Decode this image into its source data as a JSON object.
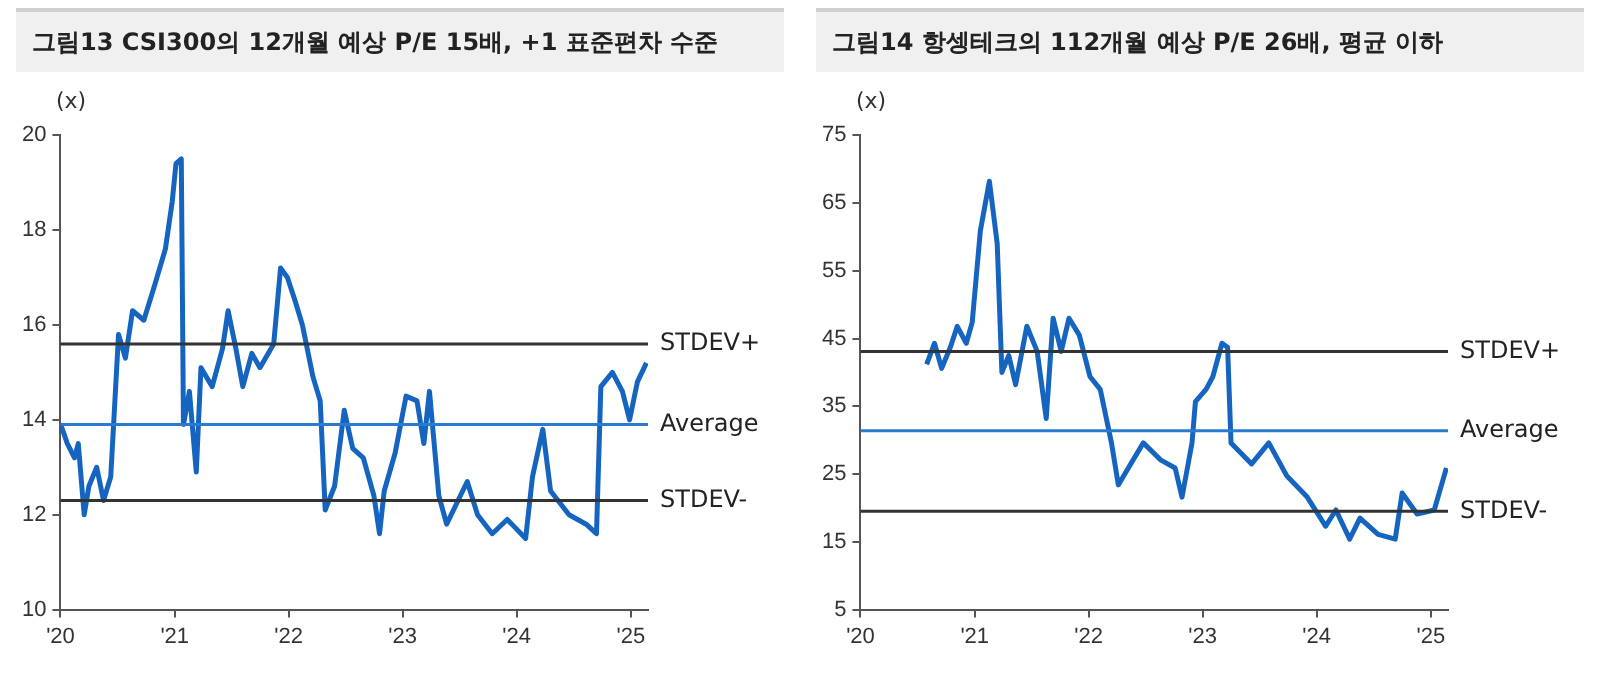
{
  "chart_data": [
    {
      "type": "line",
      "title": "그림13 CSI300의 12개월 예상 P/E 15배, +1 표준편차 수준",
      "ylabel": "(x)",
      "x": [
        "2020-01-02",
        "2020-01-23",
        "2020-02-15",
        "2020-02-27",
        "2020-03-17",
        "2020-04-01",
        "2020-04-26",
        "2020-05-18",
        "2020-06-10",
        "2020-07-05",
        "2020-07-27",
        "2020-08-19",
        "2020-09-24",
        "2020-10-27",
        "2020-12-02",
        "2020-12-24",
        "2021-01-05",
        "2021-01-22",
        "2021-01-29",
        "2021-02-17",
        "2021-03-11",
        "2021-03-26",
        "2021-05-01",
        "2021-06-03",
        "2021-06-21",
        "2021-07-16",
        "2021-08-07",
        "2021-09-05",
        "2021-10-01",
        "2021-11-14",
        "2021-12-06",
        "2021-12-28",
        "2022-01-22",
        "2022-02-14",
        "2022-03-20",
        "2022-04-12",
        "2022-04-28",
        "2022-05-28",
        "2022-06-28",
        "2022-07-25",
        "2022-08-28",
        "2022-10-01",
        "2022-10-19",
        "2022-11-03",
        "2022-12-08",
        "2023-01-12",
        "2023-02-16",
        "2023-03-10",
        "2023-03-28",
        "2023-04-27",
        "2023-05-22",
        "2023-07-27",
        "2023-08-29",
        "2023-10-15",
        "2023-12-02",
        "2024-01-30",
        "2024-02-21",
        "2024-03-25",
        "2024-04-19",
        "2024-06-17",
        "2024-08-11",
        "2024-09-13",
        "2024-09-27",
        "2024-11-03",
        "2024-12-05",
        "2024-12-28",
        "2025-01-22",
        "2025-02-20"
      ],
      "series": [
        {
          "color": "#1565c0",
          "values": [
            13.9,
            13.5,
            13.2,
            13.5,
            12.0,
            12.6,
            13.0,
            12.3,
            12.8,
            15.8,
            15.3,
            16.3,
            16.1,
            16.8,
            17.6,
            18.6,
            19.4,
            19.5,
            13.9,
            14.6,
            12.9,
            15.1,
            14.7,
            15.5,
            16.3,
            15.5,
            14.7,
            15.4,
            15.1,
            15.6,
            17.2,
            17.0,
            16.5,
            16.0,
            14.9,
            14.4,
            12.1,
            12.6,
            14.2,
            13.4,
            13.2,
            12.4,
            11.6,
            12.5,
            13.3,
            14.5,
            14.4,
            13.5,
            14.6,
            12.4,
            11.8,
            12.7,
            12.0,
            11.6,
            11.9,
            11.5,
            12.8,
            13.8,
            12.5,
            12.0,
            11.8,
            11.6,
            14.7,
            15.0,
            14.6,
            14.0,
            14.8,
            15.2
          ]
        }
      ],
      "xlim": [
        "2020-01-01",
        "2025-02-25"
      ],
      "xticks": [
        {
          "value": "2020-01-01",
          "label": "'20"
        },
        {
          "value": "2021-01-01",
          "label": "'21"
        },
        {
          "value": "2022-01-01",
          "label": "'22"
        },
        {
          "value": "2023-01-01",
          "label": "'23"
        },
        {
          "value": "2024-01-01",
          "label": "'24"
        },
        {
          "value": "2025-01-01",
          "label": "'25"
        }
      ],
      "ylim": [
        10,
        20
      ],
      "yticks": [
        10,
        12,
        14,
        16,
        18,
        20
      ],
      "ref_lines": [
        {
          "axis": "y",
          "value": 15.6,
          "label": "STDEV+",
          "color": "#333333"
        },
        {
          "axis": "y",
          "value": 13.9,
          "label": "Average",
          "color": "#2a7bd0"
        },
        {
          "axis": "y",
          "value": 12.3,
          "label": "STDEV-",
          "color": "#333333"
        }
      ],
      "grid": false,
      "legend": false
    },
    {
      "type": "line",
      "title": "그림14 항셍테크의 112개월 예상 P/E 26배, 평균 이하",
      "ylabel": "(x)",
      "x": [
        "2020-07-31",
        "2020-08-25",
        "2020-09-17",
        "2020-10-15",
        "2020-11-06",
        "2020-12-05",
        "2020-12-24",
        "2021-01-19",
        "2021-02-17",
        "2021-03-14",
        "2021-03-29",
        "2021-04-20",
        "2021-05-12",
        "2021-06-17",
        "2021-07-20",
        "2021-08-18",
        "2021-09-09",
        "2021-10-05",
        "2021-10-30",
        "2021-12-02",
        "2022-01-05",
        "2022-02-07",
        "2022-03-15",
        "2022-04-06",
        "2022-05-08",
        "2022-06-25",
        "2022-08-19",
        "2022-10-05",
        "2022-10-27",
        "2022-11-28",
        "2022-12-09",
        "2023-01-12",
        "2023-02-03",
        "2023-03-04",
        "2023-03-22",
        "2023-04-02",
        "2023-06-07",
        "2023-08-01",
        "2023-09-28",
        "2023-12-02",
        "2024-01-30",
        "2024-03-03",
        "2024-04-16",
        "2024-05-19",
        "2024-07-16",
        "2024-09-09",
        "2024-10-01",
        "2024-11-18",
        "2025-01-12",
        "2025-02-20"
      ],
      "series": [
        {
          "color": "#1565c0",
          "values": [
            41.2,
            44.3,
            40.6,
            43.7,
            46.8,
            44.3,
            47.4,
            60.9,
            68.2,
            59.0,
            40.0,
            42.5,
            38.2,
            46.8,
            43.1,
            33.2,
            48.0,
            43.1,
            48.0,
            45.5,
            39.4,
            37.5,
            29.6,
            23.4,
            25.9,
            29.6,
            27.1,
            25.9,
            21.6,
            29.6,
            35.7,
            37.5,
            39.4,
            44.3,
            43.7,
            29.6,
            26.5,
            29.6,
            24.7,
            21.6,
            17.3,
            19.7,
            15.4,
            18.5,
            16.1,
            15.4,
            22.2,
            19.1,
            19.7,
            25.9
          ]
        }
      ],
      "xlim": [
        "2020-01-01",
        "2025-02-25"
      ],
      "xticks": [
        {
          "value": "2020-01-01",
          "label": "'20"
        },
        {
          "value": "2021-01-01",
          "label": "'21"
        },
        {
          "value": "2022-01-01",
          "label": "'22"
        },
        {
          "value": "2023-01-01",
          "label": "'23"
        },
        {
          "value": "2024-01-01",
          "label": "'24"
        },
        {
          "value": "2025-01-01",
          "label": "'25"
        }
      ],
      "ylim": [
        5,
        75
      ],
      "yticks": [
        5,
        15,
        25,
        35,
        45,
        55,
        65,
        75
      ],
      "ref_lines": [
        {
          "axis": "y",
          "value": 43.1,
          "label": "STDEV+",
          "color": "#333333"
        },
        {
          "axis": "y",
          "value": 31.4,
          "label": "Average",
          "color": "#2a7bd0"
        },
        {
          "axis": "y",
          "value": 19.5,
          "label": "STDEV-",
          "color": "#333333"
        }
      ],
      "grid": false,
      "legend": false
    }
  ]
}
